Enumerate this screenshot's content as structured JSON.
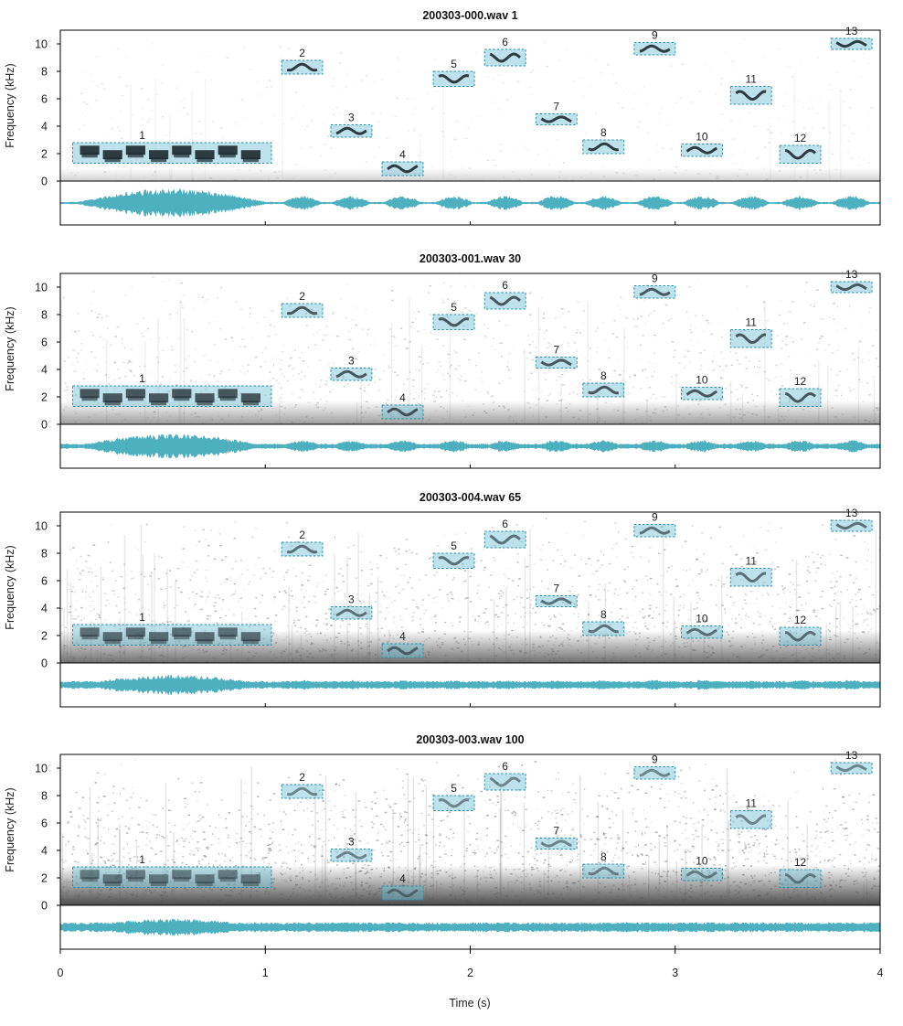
{
  "chart_data": {
    "type": "spectrogram",
    "xlabel": "Time (s)",
    "ylabel": "Frequency (kHz)",
    "xlim": [
      0,
      4
    ],
    "ylim": [
      0,
      11
    ],
    "x_ticks": [
      "0",
      "1",
      "2",
      "3",
      "4"
    ],
    "y_ticks": [
      "0",
      "2",
      "4",
      "6",
      "8",
      "10"
    ],
    "colors": {
      "annotation": "#6fbfd3",
      "waveform": "#3aa7b8",
      "ink": "#1f2c33"
    },
    "panels": [
      {
        "title": "200303-000.wav 1",
        "noise": 0.06,
        "wave_amp": 1.0,
        "calls": [
          {
            "id": "1",
            "t0": 0.06,
            "t1": 1.03,
            "f0": 1.3,
            "f1": 2.8
          },
          {
            "id": "2",
            "t0": 1.08,
            "t1": 1.28,
            "f0": 7.8,
            "f1": 8.8
          },
          {
            "id": "3",
            "t0": 1.32,
            "t1": 1.52,
            "f0": 3.2,
            "f1": 4.1
          },
          {
            "id": "4",
            "t0": 1.57,
            "t1": 1.77,
            "f0": 0.4,
            "f1": 1.4
          },
          {
            "id": "5",
            "t0": 1.82,
            "t1": 2.02,
            "f0": 6.9,
            "f1": 8.0
          },
          {
            "id": "6",
            "t0": 2.07,
            "t1": 2.27,
            "f0": 8.4,
            "f1": 9.6
          },
          {
            "id": "7",
            "t0": 2.32,
            "t1": 2.52,
            "f0": 4.1,
            "f1": 4.9
          },
          {
            "id": "8",
            "t0": 2.55,
            "t1": 2.75,
            "f0": 2.0,
            "f1": 3.0
          },
          {
            "id": "9",
            "t0": 2.8,
            "t1": 3.0,
            "f0": 9.2,
            "f1": 10.1
          },
          {
            "id": "10",
            "t0": 3.03,
            "t1": 3.23,
            "f0": 1.8,
            "f1": 2.7
          },
          {
            "id": "11",
            "t0": 3.27,
            "t1": 3.47,
            "f0": 5.6,
            "f1": 6.9
          },
          {
            "id": "12",
            "t0": 3.51,
            "t1": 3.71,
            "f0": 1.3,
            "f1": 2.6
          },
          {
            "id": "13",
            "t0": 3.76,
            "t1": 3.96,
            "f0": 9.6,
            "f1": 10.4
          }
        ]
      },
      {
        "title": "200303-001.wav 30",
        "noise": 0.35,
        "wave_amp": 0.85,
        "calls": [
          {
            "id": "1",
            "t0": 0.06,
            "t1": 1.03,
            "f0": 1.3,
            "f1": 2.8
          },
          {
            "id": "2",
            "t0": 1.08,
            "t1": 1.28,
            "f0": 7.8,
            "f1": 8.8
          },
          {
            "id": "3",
            "t0": 1.32,
            "t1": 1.52,
            "f0": 3.2,
            "f1": 4.1
          },
          {
            "id": "4",
            "t0": 1.57,
            "t1": 1.77,
            "f0": 0.4,
            "f1": 1.4
          },
          {
            "id": "5",
            "t0": 1.82,
            "t1": 2.02,
            "f0": 6.9,
            "f1": 8.0
          },
          {
            "id": "6",
            "t0": 2.07,
            "t1": 2.27,
            "f0": 8.4,
            "f1": 9.6
          },
          {
            "id": "7",
            "t0": 2.32,
            "t1": 2.52,
            "f0": 4.1,
            "f1": 4.9
          },
          {
            "id": "8",
            "t0": 2.55,
            "t1": 2.75,
            "f0": 2.0,
            "f1": 3.0
          },
          {
            "id": "9",
            "t0": 2.8,
            "t1": 3.0,
            "f0": 9.2,
            "f1": 10.1
          },
          {
            "id": "10",
            "t0": 3.03,
            "t1": 3.23,
            "f0": 1.8,
            "f1": 2.7
          },
          {
            "id": "11",
            "t0": 3.27,
            "t1": 3.47,
            "f0": 5.6,
            "f1": 6.9
          },
          {
            "id": "12",
            "t0": 3.51,
            "t1": 3.71,
            "f0": 1.3,
            "f1": 2.6
          },
          {
            "id": "13",
            "t0": 3.76,
            "t1": 3.96,
            "f0": 9.6,
            "f1": 10.4
          }
        ]
      },
      {
        "title": "200303-004.wav 65",
        "noise": 0.6,
        "wave_amp": 0.7,
        "calls": [
          {
            "id": "1",
            "t0": 0.06,
            "t1": 1.03,
            "f0": 1.3,
            "f1": 2.8
          },
          {
            "id": "2",
            "t0": 1.08,
            "t1": 1.28,
            "f0": 7.8,
            "f1": 8.8
          },
          {
            "id": "3",
            "t0": 1.32,
            "t1": 1.52,
            "f0": 3.2,
            "f1": 4.1
          },
          {
            "id": "4",
            "t0": 1.57,
            "t1": 1.77,
            "f0": 0.4,
            "f1": 1.4
          },
          {
            "id": "5",
            "t0": 1.82,
            "t1": 2.02,
            "f0": 6.9,
            "f1": 8.0
          },
          {
            "id": "6",
            "t0": 2.07,
            "t1": 2.27,
            "f0": 8.4,
            "f1": 9.6
          },
          {
            "id": "7",
            "t0": 2.32,
            "t1": 2.52,
            "f0": 4.1,
            "f1": 4.9
          },
          {
            "id": "8",
            "t0": 2.55,
            "t1": 2.75,
            "f0": 2.0,
            "f1": 3.0
          },
          {
            "id": "9",
            "t0": 2.8,
            "t1": 3.0,
            "f0": 9.2,
            "f1": 10.1
          },
          {
            "id": "10",
            "t0": 3.03,
            "t1": 3.23,
            "f0": 1.8,
            "f1": 2.7
          },
          {
            "id": "11",
            "t0": 3.27,
            "t1": 3.47,
            "f0": 5.6,
            "f1": 6.9
          },
          {
            "id": "12",
            "t0": 3.51,
            "t1": 3.71,
            "f0": 1.3,
            "f1": 2.6
          },
          {
            "id": "13",
            "t0": 3.76,
            "t1": 3.96,
            "f0": 9.6,
            "f1": 10.4
          }
        ]
      },
      {
        "title": "200303-003.wav 100",
        "noise": 0.8,
        "wave_amp": 0.6,
        "calls": [
          {
            "id": "1",
            "t0": 0.06,
            "t1": 1.03,
            "f0": 1.3,
            "f1": 2.8
          },
          {
            "id": "2",
            "t0": 1.08,
            "t1": 1.28,
            "f0": 7.8,
            "f1": 8.8
          },
          {
            "id": "3",
            "t0": 1.32,
            "t1": 1.52,
            "f0": 3.2,
            "f1": 4.1
          },
          {
            "id": "4",
            "t0": 1.57,
            "t1": 1.77,
            "f0": 0.4,
            "f1": 1.4
          },
          {
            "id": "5",
            "t0": 1.82,
            "t1": 2.02,
            "f0": 6.9,
            "f1": 8.0
          },
          {
            "id": "6",
            "t0": 2.07,
            "t1": 2.27,
            "f0": 8.4,
            "f1": 9.6
          },
          {
            "id": "7",
            "t0": 2.32,
            "t1": 2.52,
            "f0": 4.1,
            "f1": 4.9
          },
          {
            "id": "8",
            "t0": 2.55,
            "t1": 2.75,
            "f0": 2.0,
            "f1": 3.0
          },
          {
            "id": "9",
            "t0": 2.8,
            "t1": 3.0,
            "f0": 9.2,
            "f1": 10.1
          },
          {
            "id": "10",
            "t0": 3.03,
            "t1": 3.23,
            "f0": 1.8,
            "f1": 2.7
          },
          {
            "id": "11",
            "t0": 3.27,
            "t1": 3.47,
            "f0": 5.6,
            "f1": 6.9
          },
          {
            "id": "12",
            "t0": 3.51,
            "t1": 3.71,
            "f0": 1.3,
            "f1": 2.6
          },
          {
            "id": "13",
            "t0": 3.76,
            "t1": 3.96,
            "f0": 9.6,
            "f1": 10.4
          }
        ]
      }
    ]
  }
}
